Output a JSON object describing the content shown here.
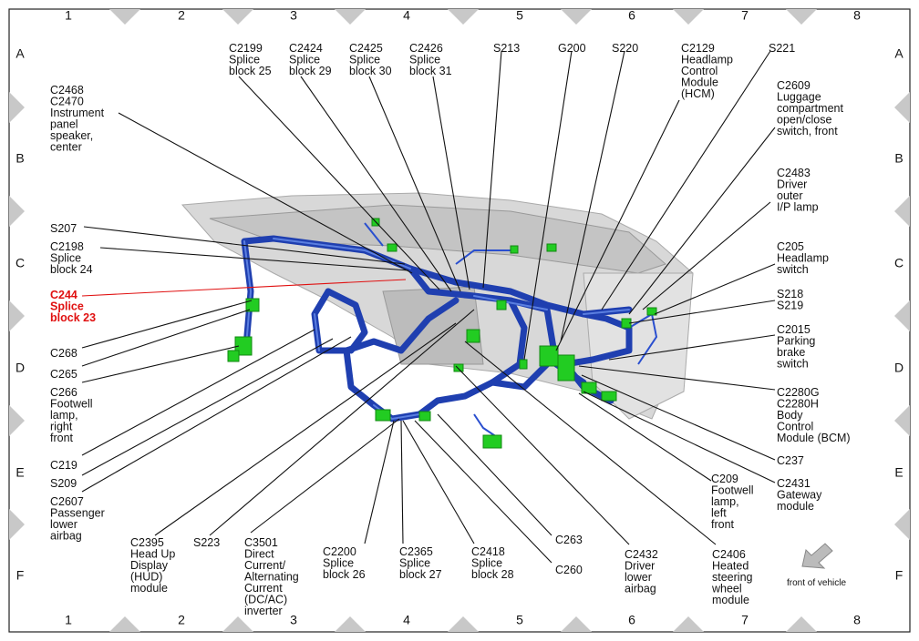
{
  "grid": {
    "columns": [
      "1",
      "2",
      "3",
      "4",
      "5",
      "6",
      "7",
      "8"
    ],
    "rows": [
      "A",
      "B",
      "C",
      "D",
      "E",
      "F"
    ]
  },
  "labels": [
    {
      "lines": [
        "C2468",
        "C2470",
        "Instrument",
        "panel",
        "speaker,",
        "center"
      ]
    },
    {
      "lines": [
        "C2199",
        "Splice",
        "block 25"
      ]
    },
    {
      "lines": [
        "C2424",
        "Splice",
        "block 29"
      ]
    },
    {
      "lines": [
        "C2425",
        "Splice",
        "block 30"
      ]
    },
    {
      "lines": [
        "C2426",
        "Splice",
        "block 31"
      ]
    },
    {
      "lines": [
        "S213"
      ]
    },
    {
      "lines": [
        "G200"
      ]
    },
    {
      "lines": [
        "S220"
      ]
    },
    {
      "lines": [
        "C2129",
        "Headlamp",
        "Control",
        "Module",
        "(HCM)"
      ]
    },
    {
      "lines": [
        "S221"
      ]
    },
    {
      "lines": [
        "C2609",
        "Luggage",
        "compartment",
        "open/close",
        "switch, front"
      ]
    },
    {
      "lines": [
        "C2483",
        "Driver",
        "outer",
        "I/P lamp"
      ]
    },
    {
      "lines": [
        "C205",
        "Headlamp",
        "switch"
      ]
    },
    {
      "lines": [
        "S218",
        "S219"
      ]
    },
    {
      "lines": [
        "C2015",
        "Parking",
        "brake",
        "switch"
      ]
    },
    {
      "lines": [
        "C2280G",
        "C2280H",
        "Body",
        "Control",
        "Module (BCM)"
      ]
    },
    {
      "lines": [
        "C237"
      ]
    },
    {
      "lines": [
        "C2431",
        "Gateway",
        "module"
      ]
    },
    {
      "lines": [
        "C209",
        "Footwell",
        "lamp,",
        "left",
        "front"
      ]
    },
    {
      "lines": [
        "C2406",
        "Heated",
        "steering",
        "wheel",
        "module"
      ]
    },
    {
      "lines": [
        "C2432",
        "Driver",
        "lower",
        "airbag"
      ]
    },
    {
      "lines": [
        "C263"
      ]
    },
    {
      "lines": [
        "C260"
      ]
    },
    {
      "lines": [
        "C2418",
        "Splice",
        "block 28"
      ]
    },
    {
      "lines": [
        "C2365",
        "Splice",
        "block 27"
      ]
    },
    {
      "lines": [
        "C2200",
        "Splice",
        "block 26"
      ]
    },
    {
      "lines": [
        "C3501",
        "Direct",
        "Current/",
        "Alternating",
        "Current",
        "(DC/AC)",
        "inverter"
      ]
    },
    {
      "lines": [
        "S223"
      ]
    },
    {
      "lines": [
        "C2395",
        "Head Up",
        "Display",
        "(HUD)",
        "module"
      ]
    },
    {
      "lines": [
        "C2607",
        "Passenger",
        "lower",
        "airbag"
      ]
    },
    {
      "lines": [
        "S209"
      ]
    },
    {
      "lines": [
        "C219"
      ]
    },
    {
      "lines": [
        "C266",
        "Footwell",
        "lamp,",
        "right",
        "front"
      ]
    },
    {
      "lines": [
        "C265"
      ]
    },
    {
      "lines": [
        "C268"
      ]
    },
    {
      "lines": [
        "C244",
        "Splice",
        "block 23"
      ],
      "color": "#e01010"
    },
    {
      "lines": [
        "C2198",
        "Splice",
        "block 24"
      ]
    },
    {
      "lines": [
        "S207"
      ]
    }
  ],
  "compass": {
    "text": "front of vehicle"
  }
}
